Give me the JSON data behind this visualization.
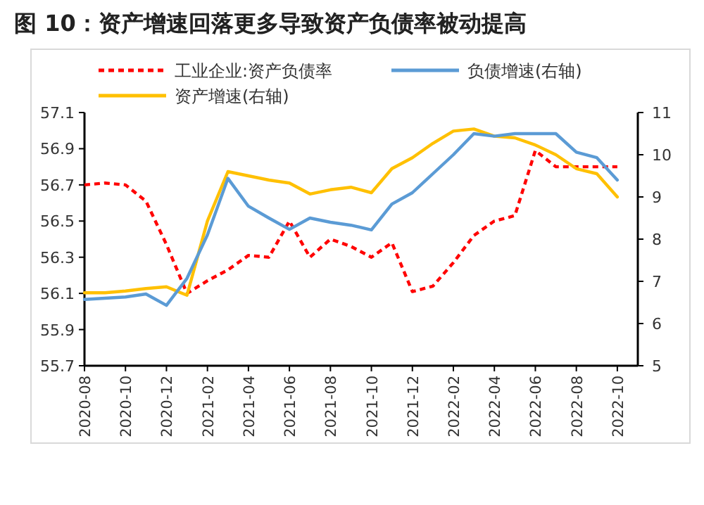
{
  "chart_data": {
    "type": "line",
    "title": "图 10：资产增速回落更多导致资产负债率被动提高",
    "x": [
      "2020-08",
      "2020-09",
      "2020-10",
      "2020-11",
      "2020-12",
      "2021-01",
      "2021-02",
      "2021-03",
      "2021-04",
      "2021-05",
      "2021-06",
      "2021-07",
      "2021-08",
      "2021-09",
      "2021-10",
      "2021-11",
      "2021-12",
      "2022-01",
      "2022-02",
      "2022-03",
      "2022-04",
      "2022-05",
      "2022-06",
      "2022-07",
      "2022-08",
      "2022-09",
      "2022-10"
    ],
    "series": [
      {
        "name": "工业企业:资产负债率",
        "color": "#ff0000",
        "line_style": "dashed",
        "values": [
          56.7,
          56.71,
          56.7,
          56.61,
          56.37,
          56.1,
          56.17,
          56.23,
          56.31,
          56.3,
          56.5,
          56.3,
          56.4,
          56.36,
          56.3,
          56.38,
          56.11,
          56.14,
          56.27,
          56.42,
          56.5,
          56.53,
          56.89,
          56.8,
          56.8,
          56.8,
          56.8
        ]
      },
      {
        "name": "资产增速(右轴)",
        "color": "#ffc000",
        "axis": "y2",
        "values": [
          6.73,
          6.73,
          6.77,
          6.83,
          6.87,
          6.67,
          8.43,
          9.6,
          9.5,
          9.4,
          9.33,
          9.07,
          9.17,
          9.23,
          9.1,
          9.67,
          9.93,
          10.27,
          10.56,
          10.61,
          10.44,
          10.4,
          10.23,
          10.0,
          9.67,
          9.55,
          9.0
        ]
      },
      {
        "name": "负债增速(右轴)",
        "color": "#5b9bd5",
        "axis": "y2",
        "values": [
          6.57,
          6.6,
          6.63,
          6.7,
          6.43,
          7.07,
          8.1,
          9.44,
          8.78,
          8.5,
          8.23,
          8.5,
          8.4,
          8.33,
          8.22,
          8.83,
          9.1,
          9.55,
          10.0,
          10.5,
          10.44,
          10.5,
          10.5,
          10.5,
          10.06,
          9.93,
          9.4
        ]
      }
    ],
    "xlim": [
      "2020-08",
      "2022-11"
    ],
    "xticks": [
      "2020-08",
      "2020-10",
      "2020-12",
      "2021-02",
      "2021-04",
      "2021-06",
      "2021-08",
      "2021-10",
      "2021-12",
      "2022-02",
      "2022-04",
      "2022-06",
      "2022-08",
      "2022-10"
    ],
    "ylim": [
      55.7,
      57.1
    ],
    "yticks": [
      55.7,
      55.9,
      56.1,
      56.3,
      56.5,
      56.7,
      56.9,
      57.1
    ],
    "y2lim": [
      5,
      11
    ],
    "y2ticks": [
      5,
      6,
      7,
      8,
      9,
      10,
      11
    ],
    "legend": "top",
    "grid": false
  }
}
